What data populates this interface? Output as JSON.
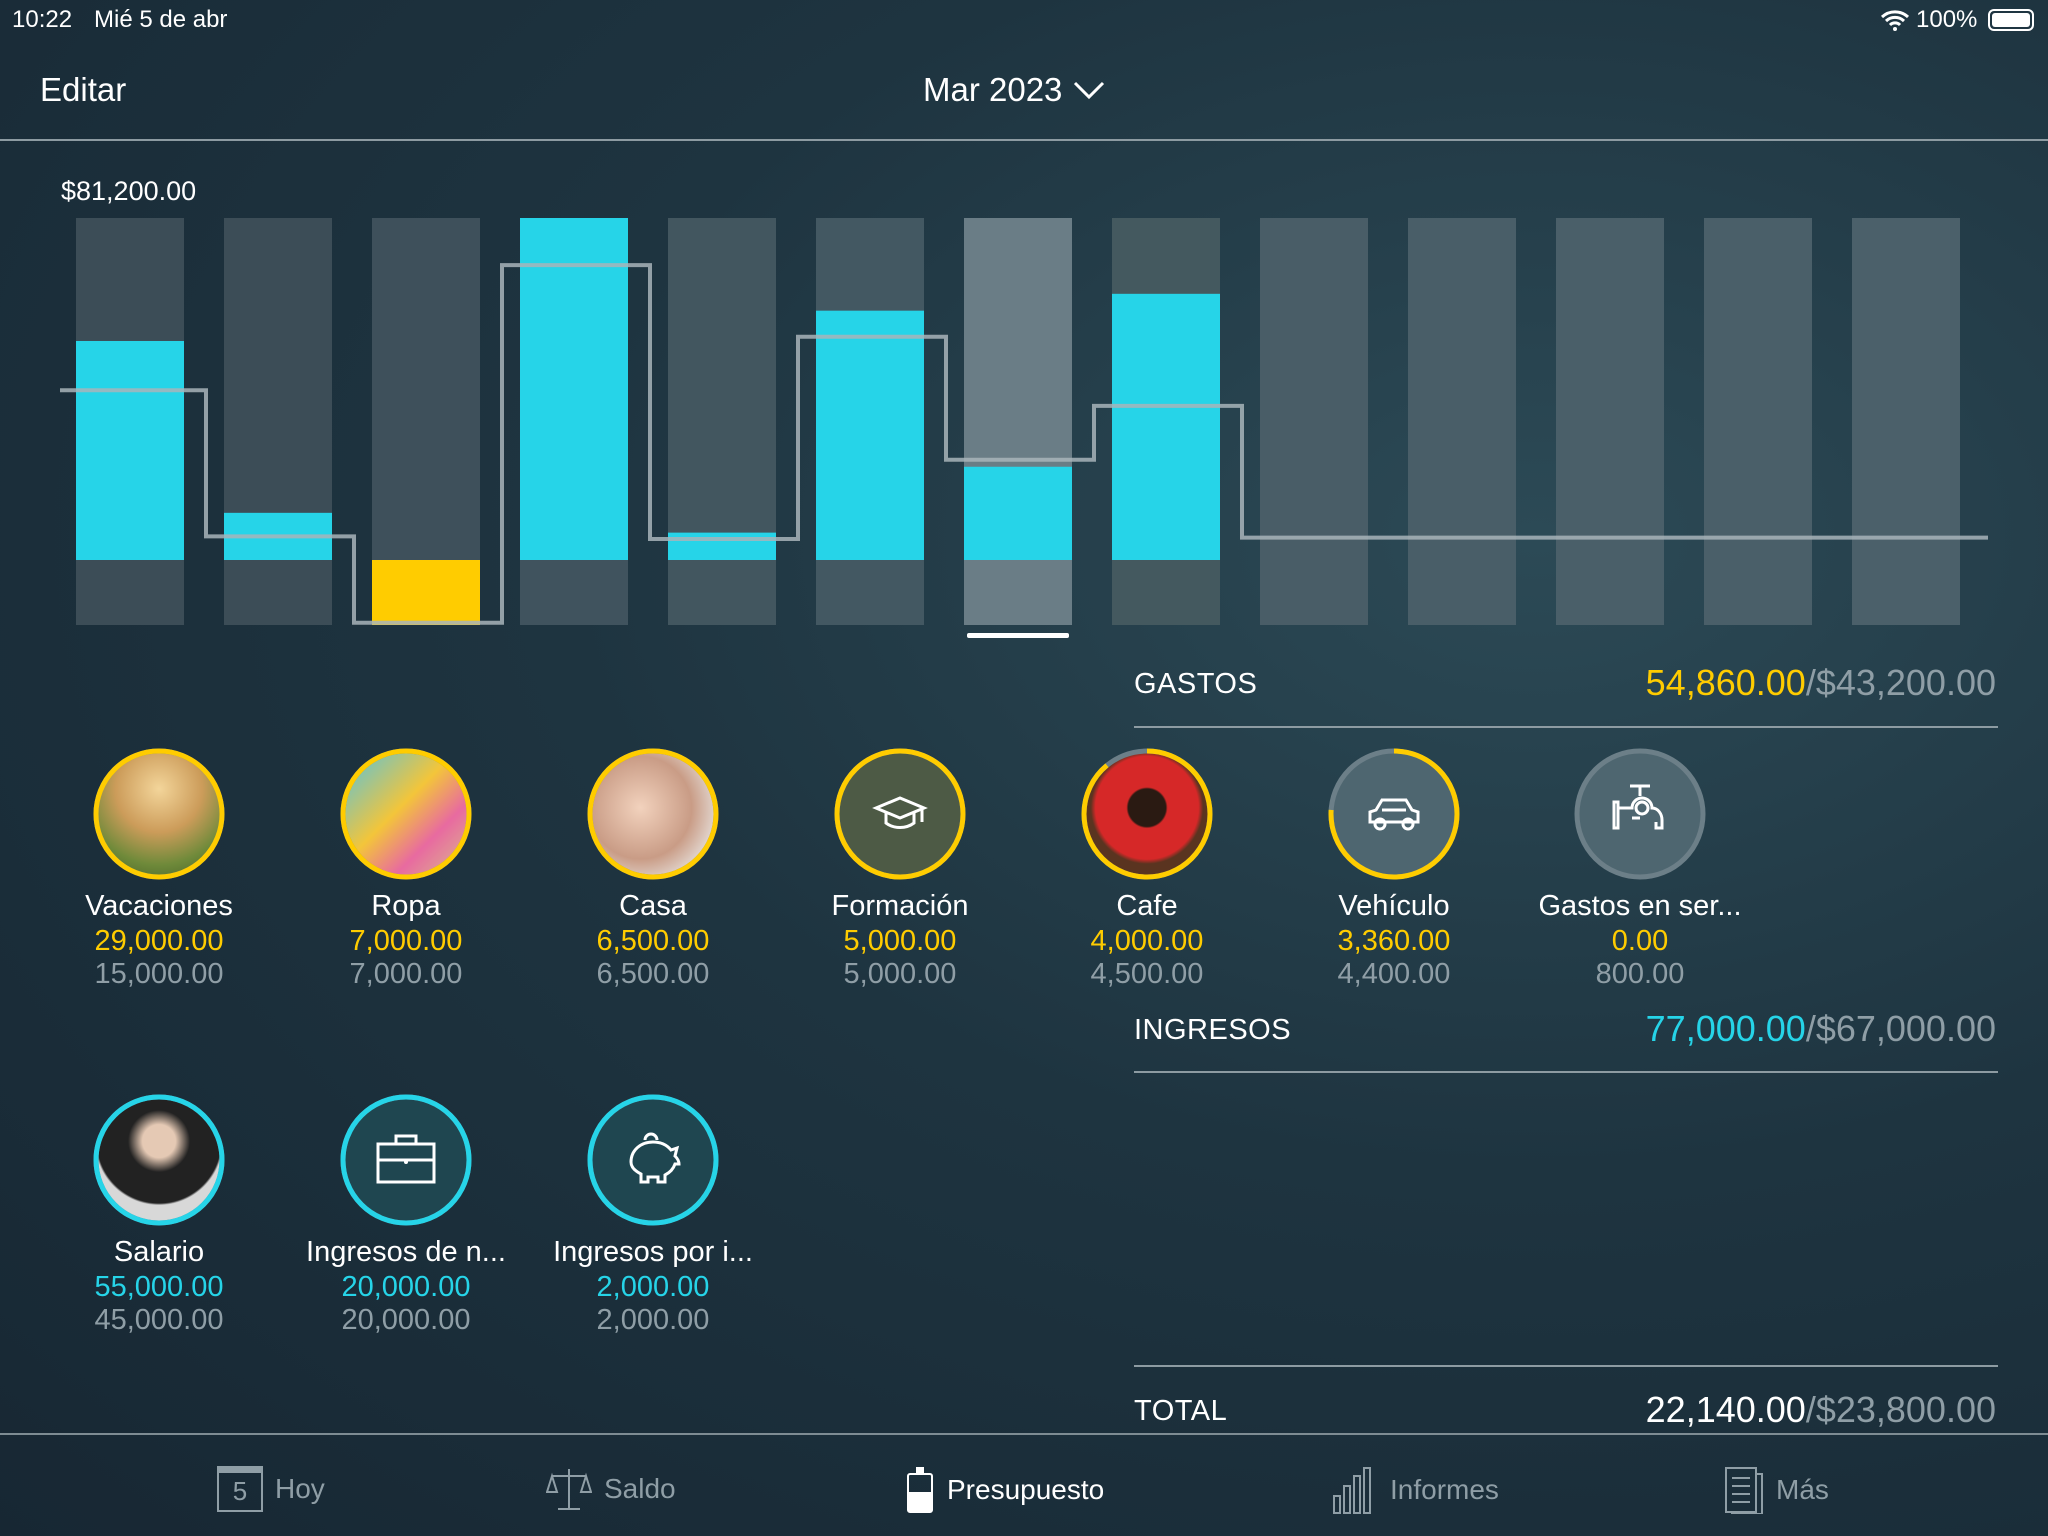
{
  "status_bar": {
    "time": "10:22",
    "date": "Mié 5 de abr",
    "battery": "100%"
  },
  "nav": {
    "edit_label": "Editar",
    "period": "Mar 2023"
  },
  "colors": {
    "expense": "#ffcc00",
    "income": "#26d4e8",
    "bar_bg": "#3d4e58",
    "line": "#a8b4ba"
  },
  "chart_data": {
    "type": "bar",
    "max_label": "$81,200.00",
    "ylim": [
      -15500,
      81200
    ],
    "selected_index": 6,
    "actual": [
      52000,
      11200,
      -15500,
      81200,
      6500,
      59200,
      22140,
      63200,
      null,
      null,
      null,
      null,
      null
    ],
    "budget": [
      40300,
      5600,
      -14900,
      70000,
      5000,
      53000,
      23800,
      36600,
      5300,
      5300,
      5300,
      5300,
      5300
    ]
  },
  "expenses": {
    "title": "GASTOS",
    "actual": "54,860.00",
    "budget": "/$43,200.00",
    "items": [
      {
        "name": "Vacaciones",
        "actual": "29,000.00",
        "budget": "15,000.00",
        "progress": 1,
        "icon": "vacation-photo"
      },
      {
        "name": "Ropa",
        "actual": "7,000.00",
        "budget": "7,000.00",
        "progress": 1,
        "icon": "shopping-photo"
      },
      {
        "name": "Casa",
        "actual": "6,500.00",
        "budget": "6,500.00",
        "progress": 1,
        "icon": "family-photo"
      },
      {
        "name": "Formación",
        "actual": "5,000.00",
        "budget": "5,000.00",
        "progress": 1,
        "icon": "graduation-cap-icon"
      },
      {
        "name": "Cafe",
        "actual": "4,000.00",
        "budget": "4,500.00",
        "progress": 0.89,
        "icon": "coffee-photo"
      },
      {
        "name": "Vehículo",
        "actual": "3,360.00",
        "budget": "4,400.00",
        "progress": 0.76,
        "icon": "car-icon"
      },
      {
        "name": "Gastos en ser...",
        "actual": "0.00",
        "budget": "800.00",
        "progress": 0,
        "icon": "faucet-icon"
      }
    ]
  },
  "income": {
    "title": "INGRESOS",
    "actual": "77,000.00",
    "budget": "/$67,000.00",
    "items": [
      {
        "name": "Salario",
        "actual": "55,000.00",
        "budget": "45,000.00",
        "progress": 1,
        "icon": "person-photo"
      },
      {
        "name": "Ingresos de n...",
        "actual": "20,000.00",
        "budget": "20,000.00",
        "progress": 1,
        "icon": "briefcase-icon"
      },
      {
        "name": "Ingresos por i...",
        "actual": "2,000.00",
        "budget": "2,000.00",
        "progress": 1,
        "icon": "piggy-bank-icon"
      }
    ]
  },
  "total": {
    "title": "TOTAL",
    "actual": "22,140.00",
    "budget": "/$23,800.00"
  },
  "tabs": [
    {
      "label": "Hoy",
      "day": "5"
    },
    {
      "label": "Saldo"
    },
    {
      "label": "Presupuesto",
      "active": true
    },
    {
      "label": "Informes"
    },
    {
      "label": "Más"
    }
  ]
}
